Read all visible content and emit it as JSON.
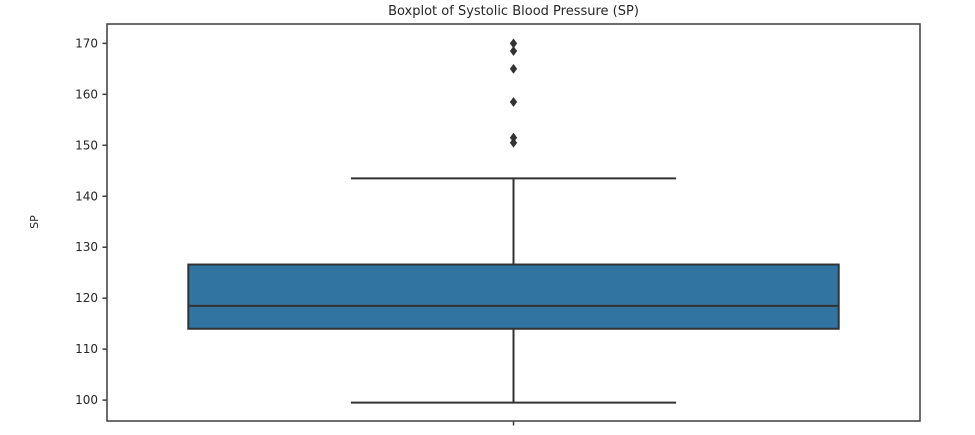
{
  "figure": {
    "title": "Boxplot of Systolic Blood Pressure (SP)",
    "background_color": "#ffffff"
  },
  "chart_data": {
    "type": "boxplot",
    "title": "Boxplot of Systolic Blood Pressure (SP)",
    "xlabel": "",
    "ylabel": "SP",
    "ylim": [
      95.9,
      173.8
    ],
    "yticks": [
      100,
      110,
      120,
      130,
      140,
      150,
      160,
      170
    ],
    "grid": false,
    "legend": null,
    "orientation": "vertical",
    "series": [
      {
        "name": "SP",
        "whisker_low": 99.5,
        "q1": 114.0,
        "median": 118.5,
        "q3": 126.6,
        "whisker_high": 143.5,
        "outliers": [
          150.5,
          151.5,
          158.5,
          165.0,
          168.5,
          170.0
        ]
      }
    ],
    "style": {
      "box_fill": "#3274a1",
      "line_color": "#333333",
      "spine_color": "#3d3d3d",
      "text_color": "#262626",
      "flier_marker": "diamond",
      "box_width_frac": 0.8,
      "cap_width_frac": 0.4
    }
  }
}
